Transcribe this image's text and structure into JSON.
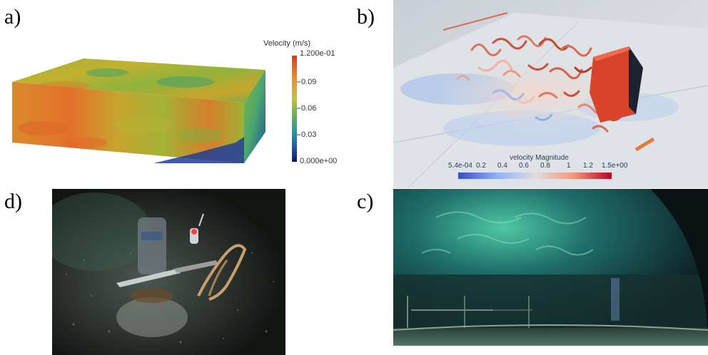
{
  "panels": {
    "a": {
      "letter": "a)",
      "colorbar": {
        "title": "Velocity (m/s)",
        "labels": [
          "1.200e-01",
          "0.09",
          "0.06",
          "0.03",
          "0.000e+00"
        ]
      }
    },
    "b": {
      "letter": "b)",
      "colorbar": {
        "title": "velocity Magnitude",
        "labels": [
          "5.4e-04",
          "0.2",
          "0.4",
          "0.6",
          "0.8",
          "1",
          "1.2",
          "1.5e+00"
        ]
      }
    },
    "c": {
      "letter": "c)"
    },
    "d": {
      "letter": "d)"
    }
  }
}
